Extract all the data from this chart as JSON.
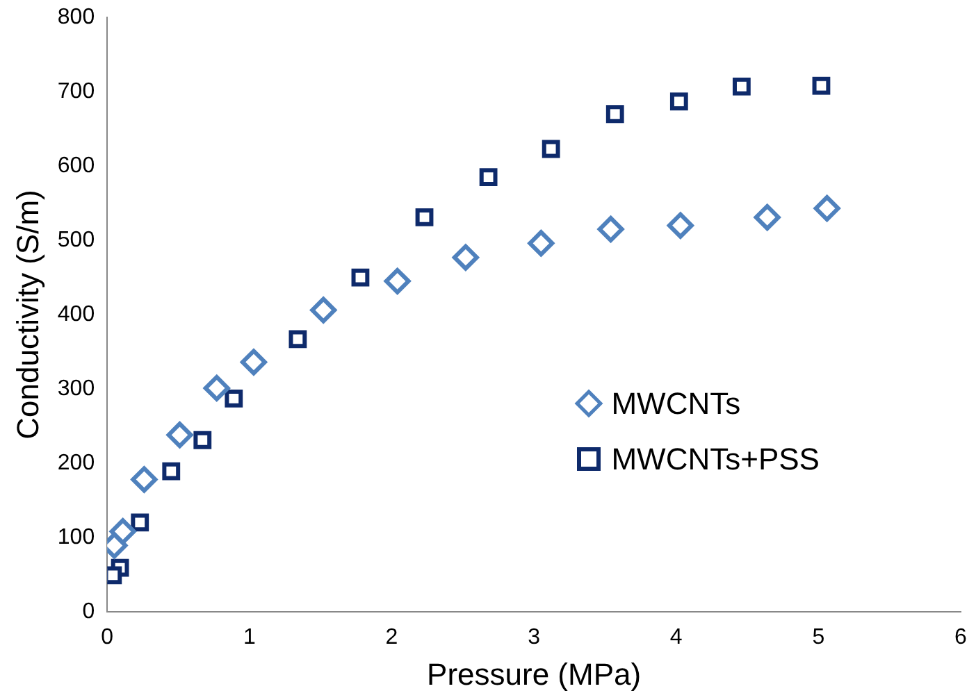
{
  "chart_data": {
    "type": "scatter",
    "xlabel": "Pressure (MPa)",
    "ylabel": "Conductivity (S/m)",
    "xlim": [
      0,
      6
    ],
    "xticks": [
      0,
      1,
      2,
      3,
      4,
      5,
      6
    ],
    "ylim": [
      0,
      800
    ],
    "yticks": [
      0,
      100,
      200,
      300,
      400,
      500,
      600,
      700,
      800
    ],
    "grid": false,
    "legend": "right",
    "series": [
      {
        "name": "MWCNTs",
        "color": "#4f81bd",
        "marker": "diamond",
        "x": [
          0.05,
          0.11,
          0.26,
          0.51,
          0.77,
          1.03,
          1.52,
          2.04,
          2.52,
          3.05,
          3.54,
          4.03,
          4.64,
          5.06
        ],
        "values": [
          89,
          108,
          178,
          238,
          301,
          336,
          406,
          445,
          477,
          496,
          515,
          520,
          531,
          543
        ]
      },
      {
        "name": "MWCNTs+PSS",
        "color": "#0e2a6b",
        "marker": "square",
        "x": [
          0.04,
          0.09,
          0.23,
          0.45,
          0.67,
          0.89,
          1.34,
          1.78,
          2.23,
          2.68,
          3.12,
          3.57,
          4.02,
          4.46,
          5.02
        ],
        "values": [
          49,
          59,
          120,
          189,
          231,
          287,
          367,
          450,
          531,
          585,
          623,
          670,
          687,
          707,
          708
        ]
      }
    ]
  }
}
